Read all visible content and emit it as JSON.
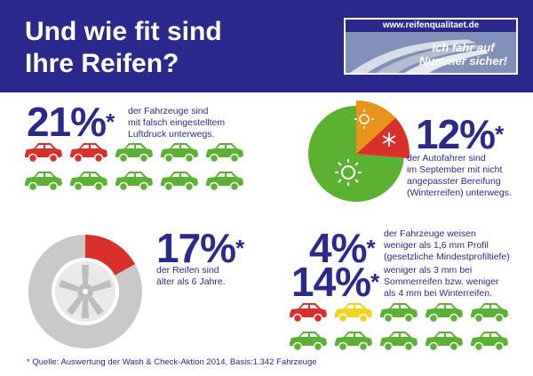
{
  "header": {
    "title": "Und wie fit sind\nIhre Reifen?",
    "badge_url": "www.reifenqualitaet.de",
    "badge_slogan": "Ich fahr auf\nNummer sicher!"
  },
  "stat_pressure": {
    "value": "21%",
    "mark": "*",
    "text": "der Fahrzeuge sind\nmit falsch eingestelltem\nLuftdruck unterwegs.",
    "share": 0.21
  },
  "stat_season": {
    "value": "12%",
    "mark": "*",
    "text": "der Autofahrer sind\nim September mit nicht\nangepasster Bereifung\n(Winterreifen) unterwegs.",
    "share": 0.12
  },
  "stat_age": {
    "value": "17%",
    "mark": "*",
    "text": "der Reifen sind\nälter als 6 Jahre.",
    "share": 0.17
  },
  "stat_profile_legal": {
    "value": "4%",
    "mark": "*",
    "text": "der Fahrzeuge weisen\nweniger als 1,6 mm  Profil\n(gesetzliche Mindestprofiltiefe)"
  },
  "stat_profile_recommended": {
    "value": "14%",
    "mark": "*",
    "text": "weniger als 3 mm bei\nSommerreifen bzw. weniger\nals 4 mm bei Winterreifen."
  },
  "cars_pressure": [
    "red",
    "red",
    "green",
    "green",
    "green",
    "green",
    "green",
    "green",
    "green",
    "green"
  ],
  "cars_profile": [
    "red",
    "yellow",
    "green",
    "green",
    "green",
    "green",
    "green",
    "green",
    "green",
    "green"
  ],
  "colors": {
    "navy": "#2b2a8c",
    "red": "#d9302c",
    "green": "#5bb131",
    "yellow": "#f2d21c",
    "orange": "#e8941a",
    "grey": "#c9c9c9"
  },
  "footnote": "* Quelle: Auswertung der Wash & Check-Aktion 2014, Basis:1.342 Fahrzeuge"
}
